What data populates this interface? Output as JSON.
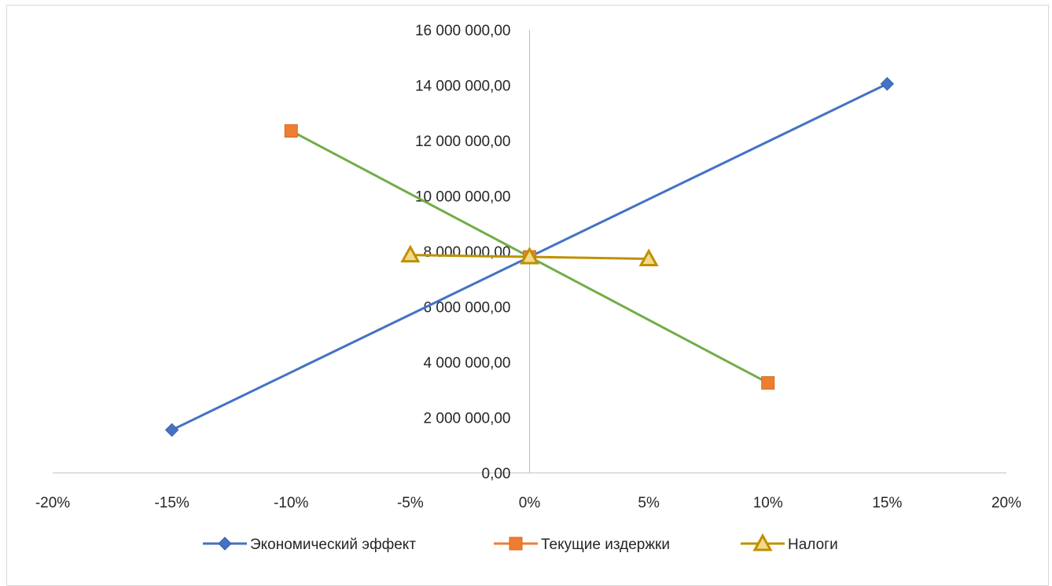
{
  "chart_data": {
    "type": "scatter",
    "title": "",
    "xlabel": "",
    "ylabel": "",
    "xlim": [
      -0.2,
      0.2
    ],
    "ylim": [
      0,
      16000000
    ],
    "x_ticks": [
      "-20%",
      "-15%",
      "-10%",
      "-5%",
      "0%",
      "5%",
      "10%",
      "15%",
      "20%"
    ],
    "y_ticks": [
      "0,00",
      "2 000 000,00",
      "4 000 000,00",
      "6 000 000,00",
      "8 000 000,00",
      "10 000 000,00",
      "12 000 000,00",
      "14 000 000,00",
      "16 000 000,00"
    ],
    "grid": false,
    "legend_position": "bottom",
    "series": [
      {
        "name": "Экономический эффект",
        "color": "#4472c4",
        "marker_color": "#4472c4",
        "marker": "diamond",
        "x": [
          -0.15,
          0,
          0.15
        ],
        "y": [
          1550000,
          7800000,
          14050000
        ]
      },
      {
        "name": "Текущие издержки",
        "color": "#70ad47",
        "marker_color": "#ed7d31",
        "marker": "square",
        "x": [
          -0.1,
          0,
          0.1
        ],
        "y": [
          12350000,
          7800000,
          3250000
        ]
      },
      {
        "name": "Налоги",
        "color": "#bf9000",
        "marker_color": "#bf9000",
        "marker": "triangle",
        "x": [
          -0.05,
          0,
          0.05
        ],
        "y": [
          7870000,
          7800000,
          7730000
        ]
      }
    ]
  }
}
